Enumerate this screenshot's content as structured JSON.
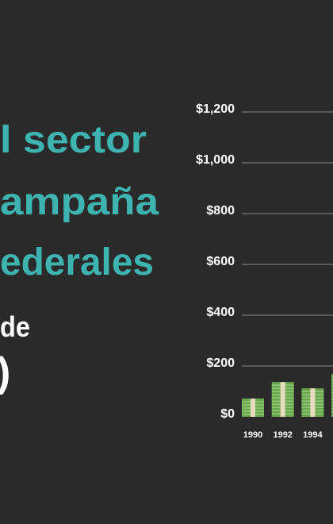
{
  "chart_data": {
    "type": "bar",
    "annotations": [
      "l sector",
      "ampaña",
      "ederales",
      "de",
      ")"
    ],
    "categories": [
      "1990",
      "1992",
      "1994",
      null
    ],
    "values": [
      72,
      137,
      112,
      169
    ],
    "color": "#6aa84f",
    "ylim": [
      0,
      1200
    ],
    "yticks": [
      {
        "value": 0,
        "label": "$0"
      },
      {
        "value": 200,
        "label": "$200"
      },
      {
        "value": 400,
        "label": "$400"
      },
      {
        "value": 600,
        "label": "$600"
      },
      {
        "value": 800,
        "label": "$800"
      },
      {
        "value": 1000,
        "label": "$1,000"
      },
      {
        "value": 1200,
        "label": "$1,200"
      }
    ],
    "grid": true
  }
}
